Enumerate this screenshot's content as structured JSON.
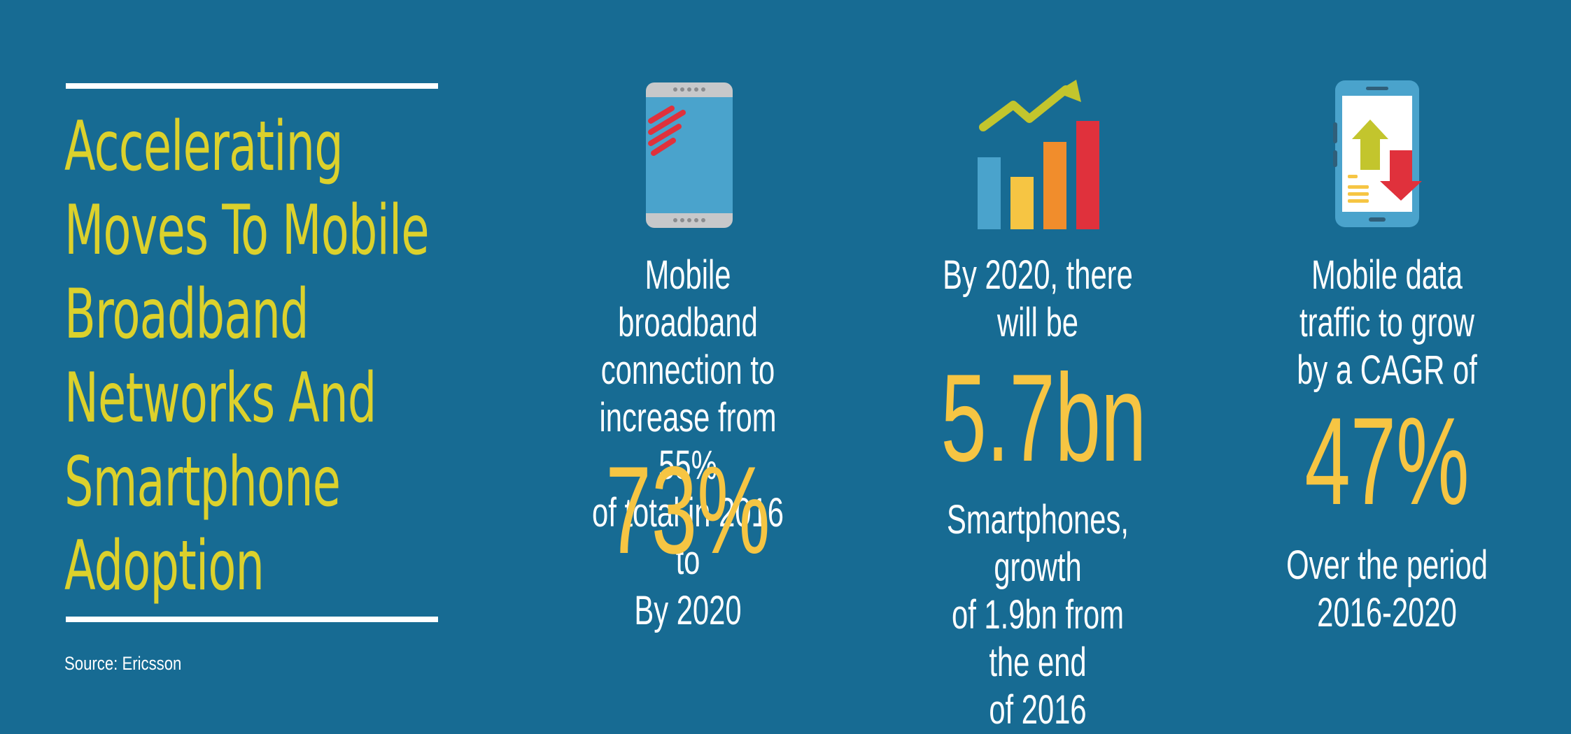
{
  "title": {
    "lines": [
      "Accelerating",
      "Moves To Mobile",
      "Broadband",
      "Networks And",
      "Smartphone",
      "Adoption"
    ]
  },
  "source": "Source: Ericsson",
  "stats": [
    {
      "icon": "smartphone-icon",
      "description": [
        "Mobile broadband",
        "connection to",
        "increase from 55%",
        "of total in 2016 to"
      ],
      "value": "73%",
      "footer": [
        "By 2020"
      ]
    },
    {
      "icon": "growth-chart-icon",
      "description": [
        "By 2020, there",
        "will be"
      ],
      "value": "5.7bn",
      "footer": [
        "Smartphones, growth",
        "of 1.9bn from the end",
        "of 2016"
      ]
    },
    {
      "icon": "data-traffic-phone-icon",
      "description": [
        "Mobile data",
        "traffic to grow",
        "by a CAGR of"
      ],
      "value": "47%",
      "footer": [
        "Over the period",
        "2016-2020"
      ]
    }
  ],
  "colors": {
    "background": "#176b93",
    "title": "#dcd12c",
    "highlight": "#f6c543",
    "text": "#ffffff"
  }
}
